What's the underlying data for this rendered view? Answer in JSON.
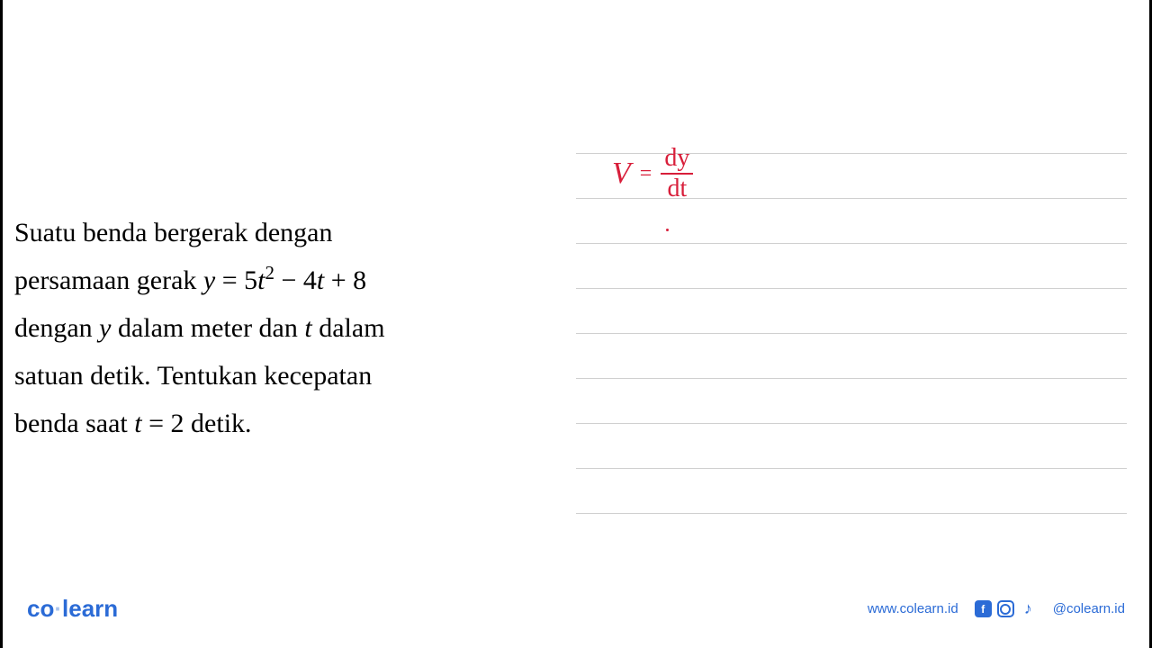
{
  "problem": {
    "line1": "Suatu benda bergerak dengan",
    "line2_prefix": "persamaan gerak ",
    "equation_y": "y",
    "equation_eq": " = 5",
    "equation_t": "t",
    "equation_sq": "2",
    "equation_mid": " − 4",
    "equation_t2": "t",
    "equation_end": " + 8",
    "line3_prefix": "dengan ",
    "line3_y": "y",
    "line3_mid": " dalam meter dan ",
    "line3_t": "t",
    "line3_end": " dalam",
    "line4": "satuan detik. Tentukan kecepatan",
    "line5_prefix": "benda saat ",
    "line5_t": "t",
    "line5_eq": " = 2 detik."
  },
  "handwriting": {
    "v": "V",
    "equals": "=",
    "numerator": "dy",
    "denominator": "dt",
    "annotation_color": "#d81e3a"
  },
  "ruled_notebook": {
    "line_color": "#d0d0d0",
    "line_count": 9,
    "line_spacing": 50
  },
  "footer": {
    "logo_part1": "co",
    "logo_separator": "·",
    "logo_part2": "learn",
    "website": "www.colearn.id",
    "handle": "@colearn.id",
    "brand_color": "#2b6bd6"
  }
}
